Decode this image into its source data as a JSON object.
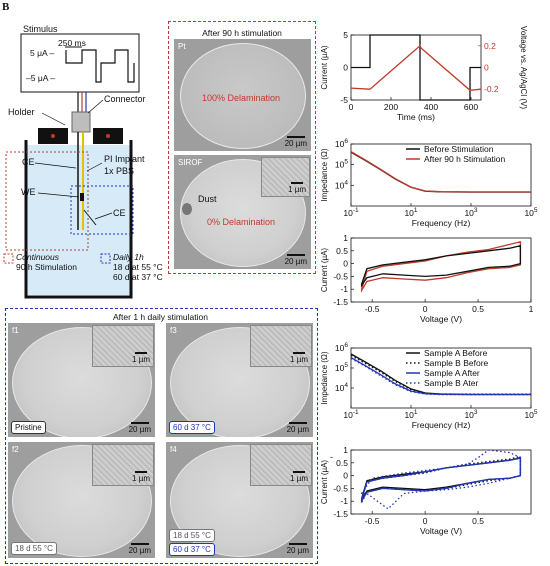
{
  "panel_label": "B",
  "schematic": {
    "stimulus_title": "Stimulus",
    "pulse_width": "250 ms",
    "amp_pos": "5 μA –",
    "amp_neg": "–5 μA –",
    "holder": "Holder",
    "connector": "Connector",
    "ce_left": "CE",
    "we": "WE",
    "ce_right": "CE",
    "pi_implant": "PI Implant",
    "pbs": "1x PBS",
    "legend_cont_title": "Continuous",
    "legend_cont_sub": "90 h Stimulation",
    "legend_daily_title": "Daily 1h",
    "legend_daily_l1": "18 d at 55 °C",
    "legend_daily_l2": "60 d at 37 °C"
  },
  "sem_top": {
    "title": "After 90 h stimulation",
    "pt_label": "Pt",
    "pt_delam": "100% Delamination",
    "sirof_label": "SIROF",
    "sirof_delam": "0% Delamination",
    "dust": "Dust",
    "scale_20": "20 µm",
    "scale_1": "1 µm"
  },
  "sem_bottom": {
    "title": "After 1 h daily stimulation",
    "f1": "f1",
    "f2": "f2",
    "f3": "f3",
    "f4": "f4",
    "tag_pristine": "Pristine",
    "tag_37": "60 d 37 °C",
    "tag_55": "18 d 55 °C",
    "tag_55b": "18 d 55 °C",
    "tag_37b": "60 d 37 °C",
    "scale_20": "20 µm",
    "scale_1": "1 µm"
  },
  "chart_data": [
    {
      "type": "line",
      "xlabel": "Time (ms)",
      "ylabel": "Current (µA)",
      "y2label": "Voltage vs. Ag/AgCl (V)",
      "xlim": [
        0,
        650
      ],
      "ylim": [
        -5,
        5
      ],
      "y2lim": [
        -0.3,
        0.3
      ],
      "xticks": [
        0,
        200,
        400,
        600
      ],
      "yticks": [
        -5,
        0,
        5
      ],
      "y2ticks": [
        -0.2,
        0,
        0.2
      ],
      "series": [
        {
          "axis": "left",
          "color": "#111111",
          "x": [
            0,
            95,
            95,
            345,
            345,
            595,
            595,
            650
          ],
          "y": [
            0,
            0,
            5,
            5,
            -5,
            -5,
            0,
            0
          ]
        },
        {
          "axis": "right",
          "color": "#c0392b",
          "x": [
            0,
            95,
            345,
            350,
            595,
            650
          ],
          "y": [
            -0.19,
            -0.2,
            0.2,
            0.18,
            -0.21,
            -0.2
          ]
        }
      ]
    },
    {
      "type": "line",
      "xscale": "log",
      "yscale": "log",
      "xlabel": "Frequency (Hz)",
      "ylabel": "Impedance (Ω)",
      "xlim": [
        0.1,
        100000
      ],
      "ylim": [
        1000,
        1000000
      ],
      "xticks": [
        "10^-1",
        "10^1",
        "10^3",
        "10^5"
      ],
      "yticks": [
        "10^4",
        "10^5",
        "10^6"
      ],
      "legend": "top-right",
      "series": [
        {
          "name": "Before Stimulation",
          "color": "#111111",
          "x": [
            0.1,
            0.3,
            1,
            3,
            10,
            30,
            100,
            1000,
            100000
          ],
          "y": [
            400000,
            160000,
            55000,
            20000,
            8000,
            5200,
            4800,
            4700,
            4700
          ]
        },
        {
          "name": "After 90 h Stimulation",
          "color": "#c0392b",
          "x": [
            0.1,
            0.3,
            1,
            3,
            10,
            30,
            100,
            1000,
            100000
          ],
          "y": [
            430000,
            170000,
            58000,
            21000,
            8200,
            5300,
            4900,
            4800,
            4800
          ]
        }
      ]
    },
    {
      "type": "line",
      "xlabel": "Voltage (V)",
      "ylabel": "Current (µA)",
      "xlim": [
        -0.7,
        1.0
      ],
      "ylim": [
        -1.5,
        1.0
      ],
      "xticks": [
        -0.5,
        0,
        0.5,
        1
      ],
      "yticks": [
        -1.5,
        -1,
        -0.5,
        0,
        0.5,
        1
      ],
      "series": [
        {
          "color": "#c0392b",
          "x": [
            -0.6,
            -0.55,
            -0.4,
            -0.2,
            0,
            0.2,
            0.4,
            0.6,
            0.8,
            0.9,
            0.9,
            0.8,
            0.6,
            0.4,
            0.2,
            0,
            -0.2,
            -0.4,
            -0.55,
            -0.6,
            -0.6
          ],
          "y": [
            -1.0,
            -0.3,
            -0.1,
            0.0,
            0.1,
            0.3,
            0.45,
            0.55,
            0.75,
            0.85,
            -0.05,
            -0.15,
            -0.2,
            -0.35,
            -0.55,
            -0.65,
            -0.6,
            -0.55,
            -0.7,
            -1.05,
            -1.0
          ]
        },
        {
          "color": "#111111",
          "x": [
            -0.6,
            -0.55,
            -0.4,
            -0.2,
            0,
            0.2,
            0.4,
            0.6,
            0.8,
            0.9,
            0.9,
            0.8,
            0.6,
            0.4,
            0.2,
            0,
            -0.2,
            -0.4,
            -0.55,
            -0.6,
            -0.6
          ],
          "y": [
            -0.8,
            -0.2,
            -0.05,
            0.05,
            0.15,
            0.3,
            0.4,
            0.5,
            0.6,
            0.7,
            0.0,
            -0.1,
            -0.15,
            -0.3,
            -0.45,
            -0.5,
            -0.45,
            -0.4,
            -0.55,
            -0.85,
            -0.8
          ]
        }
      ]
    },
    {
      "type": "line",
      "xscale": "log",
      "yscale": "log",
      "xlabel": "Frequency (Hz)",
      "ylabel": "Impedance (Ω)",
      "xlim": [
        0.1,
        100000
      ],
      "ylim": [
        1000,
        1000000
      ],
      "xticks": [
        "10^-1",
        "10^1",
        "10^3",
        "10^5"
      ],
      "yticks": [
        "10^4",
        "10^5",
        "10^6"
      ],
      "legend": "top-right",
      "series": [
        {
          "name": "Sample A Before",
          "color": "#111111",
          "dash": "",
          "x": [
            0.1,
            0.3,
            1,
            3,
            10,
            30,
            100,
            1000,
            100000
          ],
          "y": [
            500000,
            200000,
            70000,
            24000,
            9000,
            5600,
            5000,
            4800,
            4800
          ]
        },
        {
          "name": "Sample B Before",
          "color": "#111111",
          "dash": "1.5,2.5",
          "x": [
            0.1,
            0.3,
            1,
            3,
            10,
            30,
            100,
            1000,
            100000
          ],
          "y": [
            420000,
            170000,
            60000,
            21000,
            8200,
            5400,
            5000,
            4900,
            4900
          ]
        },
        {
          "name": "Sample A After",
          "color": "#2035b8",
          "dash": "",
          "x": [
            0.1,
            0.3,
            1,
            3,
            10,
            30,
            100,
            1000,
            100000
          ],
          "y": [
            330000,
            130000,
            45000,
            16000,
            7000,
            5200,
            4800,
            4700,
            4700
          ]
        },
        {
          "name": "Sample B Ater",
          "color": "#2035b8",
          "dash": "1.5,2.5",
          "x": [
            0.1,
            0.3,
            1,
            3,
            10,
            30,
            100,
            1000,
            100000
          ],
          "y": [
            300000,
            120000,
            40000,
            14500,
            6600,
            5000,
            4700,
            4600,
            4600
          ]
        }
      ]
    },
    {
      "type": "line",
      "xlabel": "Voltage (V)",
      "ylabel": "Current (µA)",
      "xlim": [
        -0.7,
        1.0
      ],
      "ylim": [
        -1.5,
        1.0
      ],
      "xticks": [
        -0.5,
        0,
        0.5
      ],
      "yticks": [
        -1.5,
        -1,
        -0.5,
        0,
        0.5,
        1
      ],
      "series": [
        {
          "color": "#111111",
          "dash": "",
          "x": [
            -0.6,
            -0.55,
            -0.4,
            -0.2,
            0,
            0.2,
            0.4,
            0.6,
            0.8,
            0.9,
            0.9,
            0.8,
            0.6,
            0.4,
            0.2,
            0,
            -0.2,
            -0.4,
            -0.55,
            -0.6,
            -0.6
          ],
          "y": [
            -0.9,
            -0.2,
            -0.05,
            0.05,
            0.15,
            0.3,
            0.4,
            0.5,
            0.6,
            0.7,
            0.0,
            -0.1,
            -0.15,
            -0.3,
            -0.45,
            -0.55,
            -0.5,
            -0.45,
            -0.6,
            -0.95,
            -0.9
          ]
        },
        {
          "color": "#111111",
          "dash": "1.5,2.5",
          "x": [
            -0.6,
            -0.55,
            -0.4,
            -0.2,
            0,
            0.2,
            0.4,
            0.6,
            0.8,
            0.9,
            0.9,
            0.8,
            0.6,
            0.4,
            0.2,
            0,
            -0.2,
            -0.4,
            -0.55,
            -0.6,
            -0.6
          ],
          "y": [
            -1.0,
            -0.25,
            -0.1,
            0.0,
            0.1,
            0.3,
            0.45,
            0.55,
            0.65,
            0.75,
            0.0,
            -0.1,
            -0.2,
            -0.35,
            -0.5,
            -0.6,
            -0.55,
            -0.5,
            -0.65,
            -1.05,
            -1.0
          ]
        },
        {
          "color": "#2035b8",
          "dash": "",
          "x": [
            -0.6,
            -0.55,
            -0.4,
            -0.2,
            0,
            0.2,
            0.4,
            0.6,
            0.8,
            0.9,
            0.9,
            0.8,
            0.6,
            0.4,
            0.2,
            0,
            -0.2,
            -0.4,
            -0.55,
            -0.6,
            -0.6
          ],
          "y": [
            -0.95,
            -0.25,
            -0.1,
            0.0,
            0.15,
            0.3,
            0.4,
            0.5,
            0.6,
            0.68,
            0.0,
            -0.1,
            -0.15,
            -0.3,
            -0.5,
            -0.6,
            -0.55,
            -0.5,
            -0.65,
            -1.0,
            -0.95
          ]
        },
        {
          "color": "#2035b8",
          "dash": "1.5,2.5",
          "x": [
            -0.6,
            -0.5,
            -0.35,
            -0.2,
            0,
            0.2,
            0.4,
            0.5,
            0.6,
            0.8,
            0.9,
            0.9,
            0.8,
            0.6,
            0.4,
            0.2,
            0,
            -0.2,
            -0.35,
            -0.45,
            -0.55,
            -0.6,
            -0.6
          ],
          "y": [
            -0.7,
            -0.1,
            0.0,
            0.1,
            0.2,
            0.3,
            0.45,
            0.7,
            1.0,
            0.9,
            0.7,
            0.0,
            -0.1,
            -0.3,
            -0.45,
            -0.55,
            -0.6,
            -0.7,
            -1.3,
            -1.0,
            -0.7,
            -0.75,
            -0.7
          ]
        }
      ]
    }
  ]
}
